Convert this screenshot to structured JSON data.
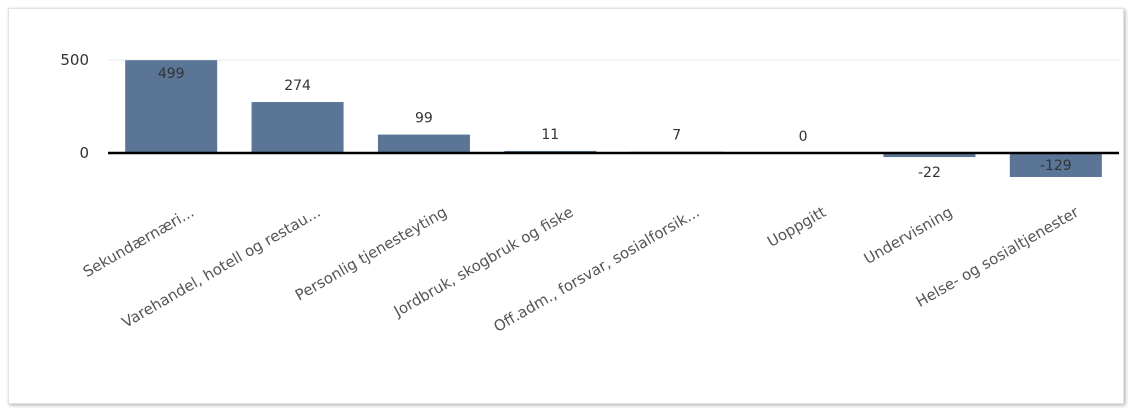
{
  "chart_data": {
    "type": "bar",
    "title": "",
    "xlabel": "",
    "ylabel": "",
    "categories": [
      "Sekundærnæri...",
      "Varehandel, hotell og restau...",
      "Personlig tjenesteyting",
      "Jordbruk, skogbruk og fiske",
      "Off.adm., forsvar, sosialforsik...",
      "Uoppgitt",
      "Undervisning",
      "Helse- og sosialtjenester"
    ],
    "values": [
      499,
      274,
      99,
      11,
      7,
      0,
      -22,
      -129
    ],
    "data_labels": [
      "499",
      "274",
      "99",
      "11",
      "7",
      "0",
      "-22",
      "-129"
    ],
    "yticks": [
      "500",
      "0"
    ],
    "ylim": [
      -150,
      550
    ],
    "grid": true,
    "legend": "none",
    "colors": {
      "bar": "#5b7596",
      "zero_line": "#000000",
      "grid": "#e8e8e8"
    }
  }
}
